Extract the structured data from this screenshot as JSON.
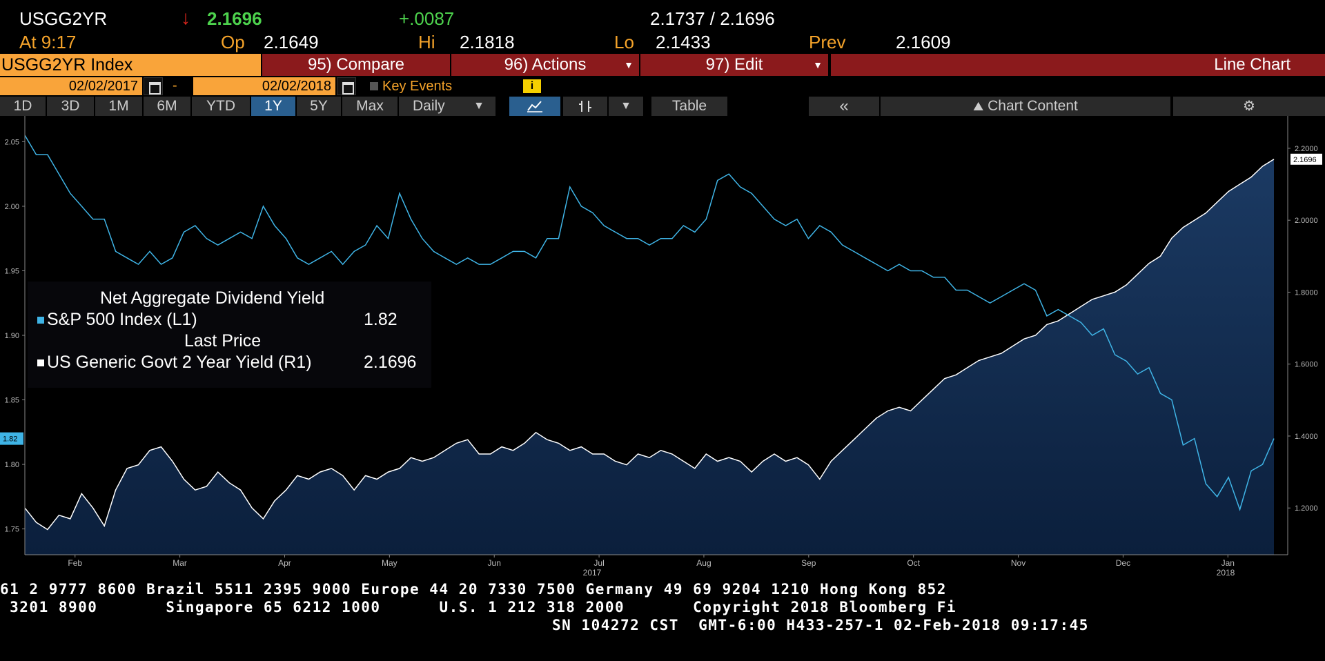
{
  "quote": {
    "ticker": "USGG2YR",
    "arrow": "↓",
    "last": "2.1696",
    "change": "+.0087",
    "bid_ask": "2.1737 / 2.1696",
    "time": "At 9:17",
    "open_label": "Op",
    "open": "2.1649",
    "high_label": "Hi",
    "high": "2.1818",
    "low_label": "Lo",
    "low": "2.1433",
    "prev_label": "Prev",
    "prev": "2.1609"
  },
  "menubar": {
    "index_label": "USGG2YR Index",
    "compare": "95) Compare",
    "actions": "96) Actions",
    "edit": "97) Edit",
    "chart_type": "Line Chart"
  },
  "daterow": {
    "start_date": "02/02/2017",
    "separator": "-",
    "end_date": "02/02/2018",
    "key_events": "Key Events"
  },
  "tabs": {
    "range": [
      "1D",
      "3D",
      "1M",
      "6M",
      "YTD",
      "1Y",
      "5Y",
      "Max"
    ],
    "active": "1Y",
    "frequency": "Daily",
    "table": "Table",
    "chart_content": "Chart Content"
  },
  "legend": {
    "title1": "Net Aggregate Dividend Yield",
    "series1": "S&P 500 Index  (L1)",
    "series1_value": "1.82",
    "title2": "Last Price",
    "series2": "US Generic Govt 2 Year Yield  (R1)",
    "series2_value": "2.1696"
  },
  "chart_data": {
    "type": "line",
    "left_axis": {
      "ticks": [
        "2.05",
        "2.00",
        "1.95",
        "1.90",
        "1.85",
        "1.80",
        "1.75"
      ],
      "ylim": [
        1.73,
        2.07
      ],
      "current_label": "1.82"
    },
    "right_axis": {
      "ticks": [
        "2.2000",
        "2.0000",
        "1.8000",
        "1.6000",
        "1.4000",
        "1.2000"
      ],
      "ylim": [
        1.07,
        2.29
      ],
      "current_label": "2.1696"
    },
    "x_labels": [
      "Feb",
      "Mar",
      "Apr",
      "May",
      "Jun",
      "Jul",
      "Aug",
      "Sep",
      "Oct",
      "Nov",
      "Dec",
      "Jan"
    ],
    "year_labels": [
      "2017",
      "2018"
    ],
    "series": [
      {
        "name": "S&P 500 Index (L1)",
        "axis": "left",
        "color": "#3fb4e6",
        "values": [
          2.055,
          2.04,
          2.04,
          2.025,
          2.01,
          2.0,
          1.99,
          1.99,
          1.965,
          1.96,
          1.955,
          1.965,
          1.955,
          1.96,
          1.98,
          1.985,
          1.975,
          1.97,
          1.975,
          1.98,
          1.975,
          2.0,
          1.985,
          1.975,
          1.96,
          1.955,
          1.96,
          1.965,
          1.955,
          1.965,
          1.97,
          1.985,
          1.975,
          2.01,
          1.99,
          1.975,
          1.965,
          1.96,
          1.955,
          1.96,
          1.955,
          1.955,
          1.96,
          1.965,
          1.965,
          1.96,
          1.975,
          1.975,
          2.015,
          2.0,
          1.995,
          1.985,
          1.98,
          1.975,
          1.975,
          1.97,
          1.975,
          1.975,
          1.985,
          1.98,
          1.99,
          2.02,
          2.025,
          2.015,
          2.01,
          2.0,
          1.99,
          1.985,
          1.99,
          1.975,
          1.985,
          1.98,
          1.97,
          1.965,
          1.96,
          1.955,
          1.95,
          1.955,
          1.95,
          1.95,
          1.945,
          1.945,
          1.935,
          1.935,
          1.93,
          1.925,
          1.93,
          1.935,
          1.94,
          1.935,
          1.915,
          1.92,
          1.915,
          1.91,
          1.9,
          1.905,
          1.885,
          1.88,
          1.87,
          1.875,
          1.855,
          1.85,
          1.815,
          1.82,
          1.785,
          1.775,
          1.79,
          1.765,
          1.795,
          1.8,
          1.82
        ]
      },
      {
        "name": "US Generic Govt 2 Year Yield (R1)",
        "axis": "right",
        "color": "#ffffff",
        "values": [
          1.2,
          1.16,
          1.14,
          1.18,
          1.17,
          1.24,
          1.2,
          1.15,
          1.25,
          1.31,
          1.32,
          1.36,
          1.37,
          1.33,
          1.28,
          1.25,
          1.26,
          1.3,
          1.27,
          1.25,
          1.2,
          1.17,
          1.22,
          1.25,
          1.29,
          1.28,
          1.3,
          1.31,
          1.29,
          1.25,
          1.29,
          1.28,
          1.3,
          1.31,
          1.34,
          1.33,
          1.34,
          1.36,
          1.38,
          1.39,
          1.35,
          1.35,
          1.37,
          1.36,
          1.38,
          1.41,
          1.39,
          1.38,
          1.36,
          1.37,
          1.35,
          1.35,
          1.33,
          1.32,
          1.35,
          1.34,
          1.36,
          1.35,
          1.33,
          1.31,
          1.35,
          1.33,
          1.34,
          1.33,
          1.3,
          1.33,
          1.35,
          1.33,
          1.34,
          1.32,
          1.28,
          1.33,
          1.36,
          1.39,
          1.42,
          1.45,
          1.47,
          1.48,
          1.47,
          1.5,
          1.53,
          1.56,
          1.57,
          1.59,
          1.61,
          1.62,
          1.63,
          1.65,
          1.67,
          1.68,
          1.71,
          1.72,
          1.74,
          1.76,
          1.78,
          1.79,
          1.8,
          1.82,
          1.85,
          1.88,
          1.9,
          1.95,
          1.98,
          2.0,
          2.02,
          2.05,
          2.08,
          2.1,
          2.12,
          2.15,
          2.1696
        ]
      }
    ]
  },
  "footer": {
    "line1": "61 2 9777 8600 Brazil 5511 2395 9000 Europe 44 20 7330 7500 Germany 49 69 9204 1210 Hong Kong 852",
    "line2": " 3201 8900       Singapore 65 6212 1000      U.S. 1 212 318 2000       Copyright 2018 Bloomberg Fi",
    "line3": "SN 104272 CST  GMT-6:00 H433-257-1 02-Feb-2018 09:17:45"
  }
}
